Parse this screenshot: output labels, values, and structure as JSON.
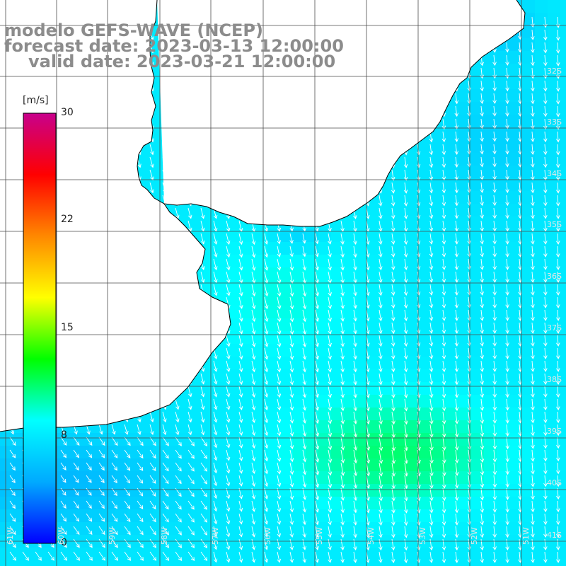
{
  "title": {
    "line1": "modelo GEFS-WAVE (NCEP)",
    "line2": "forecast date: 2023-03-13 12:00:00",
    "line3": "valid date: 2023-03-21 12:00:00"
  },
  "colorbar": {
    "unit": "[m/s]",
    "ticks": [
      "30",
      "22",
      "15",
      "8",
      "0"
    ],
    "tick_values": [
      30,
      22,
      15,
      8,
      0
    ],
    "range": [
      0,
      30
    ],
    "colors": [
      "#0000ff",
      "#00aaff",
      "#00ffff",
      "#00ff00",
      "#ffff00",
      "#ff8800",
      "#ff0000",
      "#c8008c"
    ]
  },
  "map": {
    "variable": "wind speed with direction arrows",
    "latitude_labels": [
      "32S",
      "33S",
      "34S",
      "35S",
      "36S",
      "37S",
      "38S",
      "39S",
      "40S",
      "41S"
    ],
    "longitude_labels": [
      "61W",
      "60W",
      "59W",
      "58W",
      "57W",
      "56W",
      "55W",
      "54W",
      "53W",
      "52W",
      "51W"
    ],
    "land_color": "#ffffff",
    "grid_color": "#4d4d4d",
    "arrow_color": "#ffffff"
  }
}
